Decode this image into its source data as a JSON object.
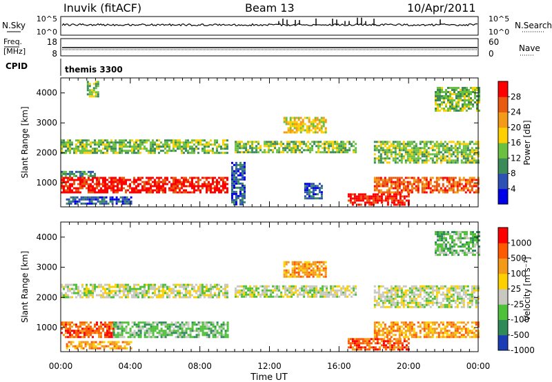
{
  "header": {
    "station": "Inuvik (fitACF)",
    "beam": "Beam 13",
    "date": "10/Apr/2011"
  },
  "top_panels": {
    "nsky_label": "N.Sky",
    "nsearch_label": "N.Search",
    "noise_ticks": [
      "10^5",
      "10^0"
    ],
    "freq_label_line1": "Freq.",
    "freq_label_line2": "[MHz]",
    "freq_ticks": [
      "18",
      "8"
    ],
    "nave_label": "Nave",
    "nave_ticks": [
      "60",
      "0"
    ],
    "cpid_label": "CPID",
    "cpid_value": "themis 3300"
  },
  "chart_data": [
    {
      "type": "heatmap",
      "name": "power",
      "ylabel": "Slant Range [km]",
      "yticks": [
        1000,
        2000,
        3000,
        4000
      ],
      "ylim": [
        200,
        4500
      ],
      "xlim": [
        0,
        24
      ],
      "colorbar_label": "Power [dB]",
      "colorbar_ticks": [
        "28",
        "24",
        "20",
        "16",
        "12",
        "8",
        "4"
      ],
      "colorscale": [
        "#0000e8",
        "#2c50b4",
        "#3a8a5a",
        "#6cc040",
        "#ffd000",
        "#f39a18",
        "#e85a10",
        "#ff0000"
      ],
      "bands": [
        {
          "x0": 0.0,
          "x1": 9.6,
          "y0": 2000,
          "y1": 2450,
          "val": 14
        },
        {
          "x0": 0.0,
          "x1": 9.6,
          "y0": 700,
          "y1": 1200,
          "val": 27
        },
        {
          "x0": 0.0,
          "x1": 2.0,
          "y0": 1200,
          "y1": 1400,
          "val": 10
        },
        {
          "x0": 0.3,
          "x1": 4.0,
          "y0": 300,
          "y1": 550,
          "val": 7
        },
        {
          "x0": 1.5,
          "x1": 2.2,
          "y0": 3900,
          "y1": 4400,
          "val": 12
        },
        {
          "x0": 9.8,
          "x1": 10.6,
          "y0": 300,
          "y1": 1700,
          "val": 5
        },
        {
          "x0": 10.0,
          "x1": 17.0,
          "y0": 2000,
          "y1": 2400,
          "val": 13
        },
        {
          "x0": 12.8,
          "x1": 15.2,
          "y0": 2700,
          "y1": 3200,
          "val": 16
        },
        {
          "x0": 14.0,
          "x1": 15.0,
          "y0": 500,
          "y1": 1000,
          "val": 6
        },
        {
          "x0": 16.5,
          "x1": 20.0,
          "y0": 250,
          "y1": 650,
          "val": 28
        },
        {
          "x0": 18.0,
          "x1": 24.0,
          "y0": 700,
          "y1": 1200,
          "val": 26
        },
        {
          "x0": 18.0,
          "x1": 24.0,
          "y0": 1700,
          "y1": 2400,
          "val": 14
        },
        {
          "x0": 21.5,
          "x1": 24.0,
          "y0": 3400,
          "y1": 4200,
          "val": 12
        }
      ]
    },
    {
      "type": "heatmap",
      "name": "velocity",
      "ylabel": "Slant Range [km]",
      "yticks": [
        1000,
        2000,
        3000,
        4000
      ],
      "ylim": [
        200,
        4500
      ],
      "xlim": [
        0,
        24
      ],
      "xlabel": "Time UT",
      "xticks": [
        "00:00",
        "04:00",
        "08:00",
        "12:00",
        "16:00",
        "20:00",
        "00:00"
      ],
      "colorbar_label": "Velocity [m s⁻¹]",
      "colorbar_ticks": [
        "1000",
        "500",
        "100",
        "25",
        "-25",
        "-100",
        "-500",
        "-1000"
      ],
      "colorscale": [
        "#1a3cb4",
        "#2e8b57",
        "#4fc03a",
        "#c8c8c0",
        "#ffd000",
        "#f39a18",
        "#ff5a00",
        "#ff0000"
      ],
      "bands": [
        {
          "x0": 0.0,
          "x1": 9.6,
          "y0": 2000,
          "y1": 2450,
          "val": 3
        },
        {
          "x0": 0.0,
          "x1": 3.0,
          "y0": 700,
          "y1": 1200,
          "val": 6
        },
        {
          "x0": 3.0,
          "x1": 9.6,
          "y0": 700,
          "y1": 1200,
          "val": 2
        },
        {
          "x0": 0.3,
          "x1": 4.0,
          "y0": 300,
          "y1": 550,
          "val": 5
        },
        {
          "x0": 10.0,
          "x1": 17.0,
          "y0": 2000,
          "y1": 2400,
          "val": 3
        },
        {
          "x0": 12.8,
          "x1": 15.2,
          "y0": 2700,
          "y1": 3200,
          "val": 5
        },
        {
          "x0": 16.5,
          "x1": 20.0,
          "y0": 250,
          "y1": 650,
          "val": 6
        },
        {
          "x0": 18.0,
          "x1": 24.0,
          "y0": 700,
          "y1": 1200,
          "val": 5
        },
        {
          "x0": 18.0,
          "x1": 24.0,
          "y0": 1700,
          "y1": 2400,
          "val": 3
        },
        {
          "x0": 21.5,
          "x1": 24.0,
          "y0": 3400,
          "y1": 4200,
          "val": 2
        }
      ]
    }
  ]
}
